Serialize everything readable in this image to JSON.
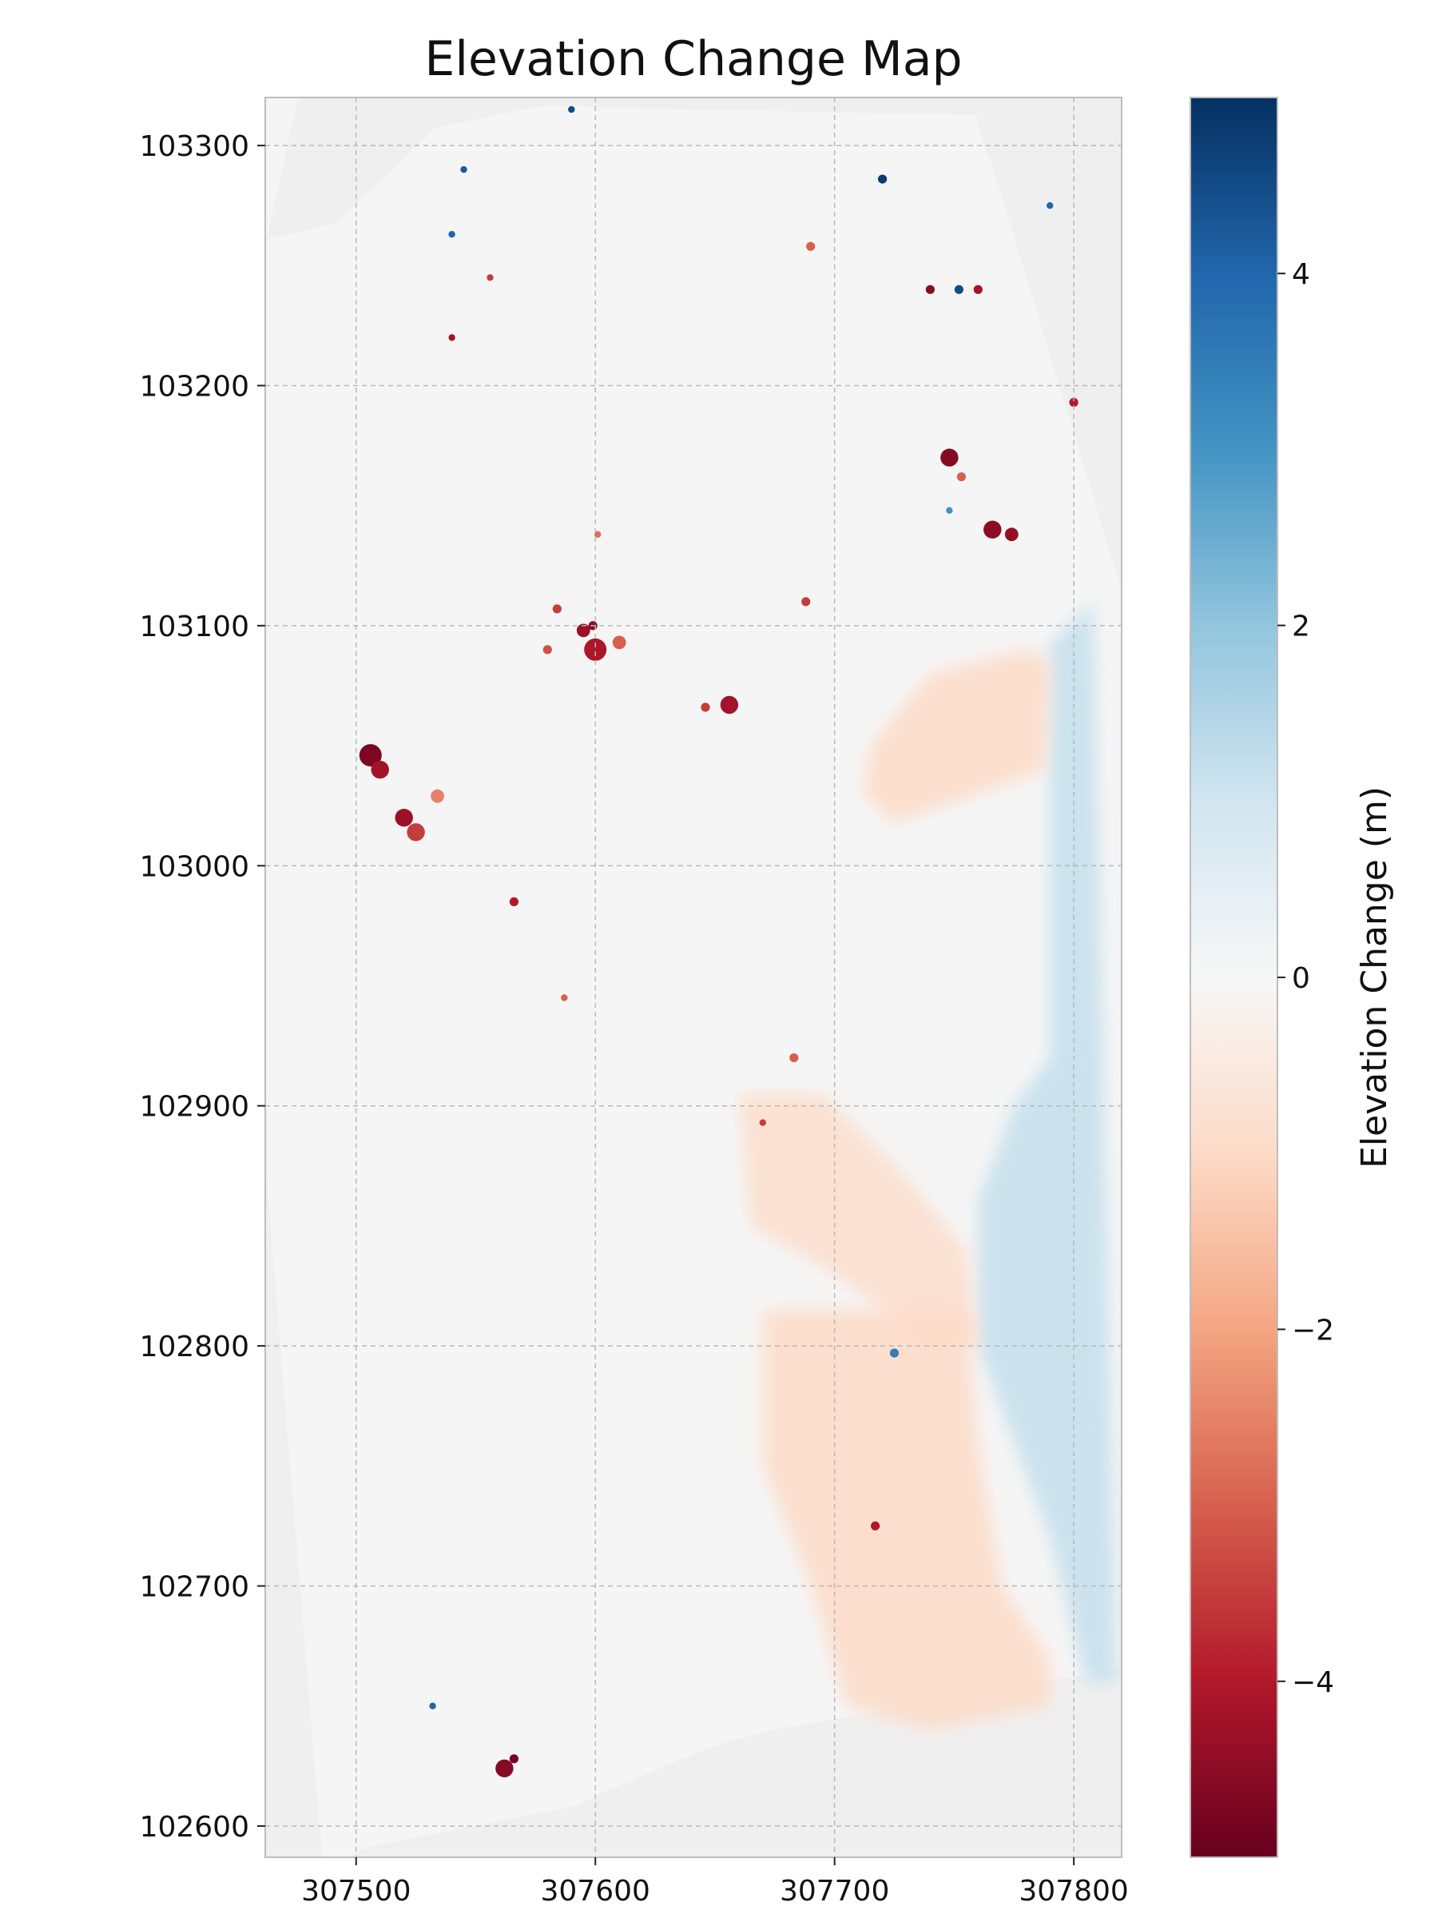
{
  "chart_data": {
    "type": "heatmap",
    "title": "Elevation Change Map",
    "xlabel": "",
    "ylabel": "",
    "xlim": [
      307462,
      307820
    ],
    "ylim": [
      102587,
      103320
    ],
    "xticks": [
      307500,
      307600,
      307700,
      307800
    ],
    "yticks": [
      102600,
      102700,
      102800,
      102900,
      103000,
      103100,
      103200,
      103300
    ],
    "grid": true,
    "colormap": "RdBu",
    "colorbar": {
      "label": "Elevation Change (m)",
      "range": [
        -5,
        5
      ],
      "ticks": [
        -4,
        -2,
        0,
        2,
        4
      ],
      "tick_labels": [
        "−4",
        "−2",
        "0",
        "2",
        "4"
      ]
    },
    "colors": {
      "background": "#efefef",
      "no_change": "#f5f5f5",
      "neg_max": "#67001f",
      "pos_max": "#053061"
    },
    "regions": [
      {
        "kind": "gain",
        "value": 1.2,
        "polygon": [
          [
            307790,
            103092
          ],
          [
            307808,
            103110
          ],
          [
            307818,
            102660
          ],
          [
            307805,
            102660
          ],
          [
            307790,
            102720
          ],
          [
            307760,
            102800
          ],
          [
            307760,
            102860
          ],
          [
            307775,
            102900
          ],
          [
            307790,
            102920
          ]
        ]
      },
      {
        "kind": "loss",
        "value": -1.0,
        "polygon": [
          [
            307715,
            103050
          ],
          [
            307740,
            103080
          ],
          [
            307780,
            103090
          ],
          [
            307790,
            103085
          ],
          [
            307788,
            103040
          ],
          [
            307760,
            103030
          ],
          [
            307725,
            103018
          ],
          [
            307712,
            103030
          ]
        ]
      },
      {
        "kind": "loss",
        "value": -0.9,
        "polygon": [
          [
            307660,
            102905
          ],
          [
            307695,
            102905
          ],
          [
            307730,
            102870
          ],
          [
            307755,
            102840
          ],
          [
            307760,
            102800
          ],
          [
            307740,
            102800
          ],
          [
            307700,
            102830
          ],
          [
            307665,
            102850
          ]
        ]
      },
      {
        "kind": "loss",
        "value": -1.0,
        "polygon": [
          [
            307670,
            102815
          ],
          [
            307720,
            102815
          ],
          [
            307755,
            102815
          ],
          [
            307760,
            102760
          ],
          [
            307770,
            102700
          ],
          [
            307790,
            102670
          ],
          [
            307790,
            102650
          ],
          [
            307740,
            102640
          ],
          [
            307705,
            102650
          ],
          [
            307690,
            102700
          ],
          [
            307670,
            102750
          ]
        ]
      }
    ],
    "points": [
      {
        "x": 307506,
        "y": 103046,
        "r": 5,
        "v": -4.7
      },
      {
        "x": 307510,
        "y": 103040,
        "r": 4,
        "v": -4.2
      },
      {
        "x": 307520,
        "y": 103020,
        "r": 4,
        "v": -4.3
      },
      {
        "x": 307525,
        "y": 103014,
        "r": 4,
        "v": -3.5
      },
      {
        "x": 307534,
        "y": 103029,
        "r": 3,
        "v": -2.5
      },
      {
        "x": 307584,
        "y": 103107,
        "r": 2,
        "v": -3.5
      },
      {
        "x": 307595,
        "y": 103098,
        "r": 3,
        "v": -4.3
      },
      {
        "x": 307600,
        "y": 103090,
        "r": 5,
        "v": -4.1
      },
      {
        "x": 307610,
        "y": 103093,
        "r": 3,
        "v": -3.0
      },
      {
        "x": 307580,
        "y": 103090,
        "r": 2,
        "v": -3.2
      },
      {
        "x": 307566,
        "y": 102985,
        "r": 2,
        "v": -4.0
      },
      {
        "x": 307656,
        "y": 103067,
        "r": 4,
        "v": -4.2
      },
      {
        "x": 307646,
        "y": 103066,
        "r": 2,
        "v": -3.5
      },
      {
        "x": 307748,
        "y": 103170,
        "r": 4,
        "v": -4.6
      },
      {
        "x": 307766,
        "y": 103140,
        "r": 4,
        "v": -4.5
      },
      {
        "x": 307774,
        "y": 103138,
        "r": 3,
        "v": -4.4
      },
      {
        "x": 307753,
        "y": 103162,
        "r": 2,
        "v": -3.0
      },
      {
        "x": 307562,
        "y": 102624,
        "r": 4,
        "v": -4.6
      },
      {
        "x": 307683,
        "y": 102920,
        "r": 2,
        "v": -3.0
      },
      {
        "x": 307688,
        "y": 103110,
        "r": 2,
        "v": -3.5
      },
      {
        "x": 307690,
        "y": 103258,
        "r": 2,
        "v": -3.0
      },
      {
        "x": 307740,
        "y": 103240,
        "r": 2,
        "v": -4.5
      },
      {
        "x": 307760,
        "y": 103240,
        "r": 2,
        "v": -4.2
      },
      {
        "x": 307800,
        "y": 103193,
        "r": 2,
        "v": -4.0
      },
      {
        "x": 307717,
        "y": 102725,
        "r": 2,
        "v": -4.0
      },
      {
        "x": 307670,
        "y": 102893,
        "r": 1.5,
        "v": -3.5
      },
      {
        "x": 307540,
        "y": 103220,
        "r": 1.5,
        "v": -4.2
      },
      {
        "x": 307556,
        "y": 103245,
        "r": 1.5,
        "v": -3.5
      },
      {
        "x": 307566,
        "y": 102628,
        "r": 2,
        "v": -4.8
      },
      {
        "x": 307587,
        "y": 102945,
        "r": 1.5,
        "v": -3.0
      },
      {
        "x": 307601,
        "y": 103138,
        "r": 1.5,
        "v": -2.8
      },
      {
        "x": 307599,
        "y": 103100,
        "r": 2,
        "v": -4.5
      },
      {
        "x": 307752,
        "y": 103240,
        "r": 2,
        "v": 4.5
      },
      {
        "x": 307720,
        "y": 103286,
        "r": 2,
        "v": 4.8
      },
      {
        "x": 307725,
        "y": 102797,
        "r": 2,
        "v": 3.5
      },
      {
        "x": 307748,
        "y": 103148,
        "r": 1.5,
        "v": 3.0
      },
      {
        "x": 307790,
        "y": 103275,
        "r": 1.5,
        "v": 4.0
      },
      {
        "x": 307540,
        "y": 103263,
        "r": 1.5,
        "v": 4.0
      },
      {
        "x": 307545,
        "y": 103290,
        "r": 1.5,
        "v": 4.2
      },
      {
        "x": 307590,
        "y": 103315,
        "r": 1.5,
        "v": 4.5
      },
      {
        "x": 307532,
        "y": 102650,
        "r": 1.5,
        "v": 4.0
      }
    ]
  }
}
